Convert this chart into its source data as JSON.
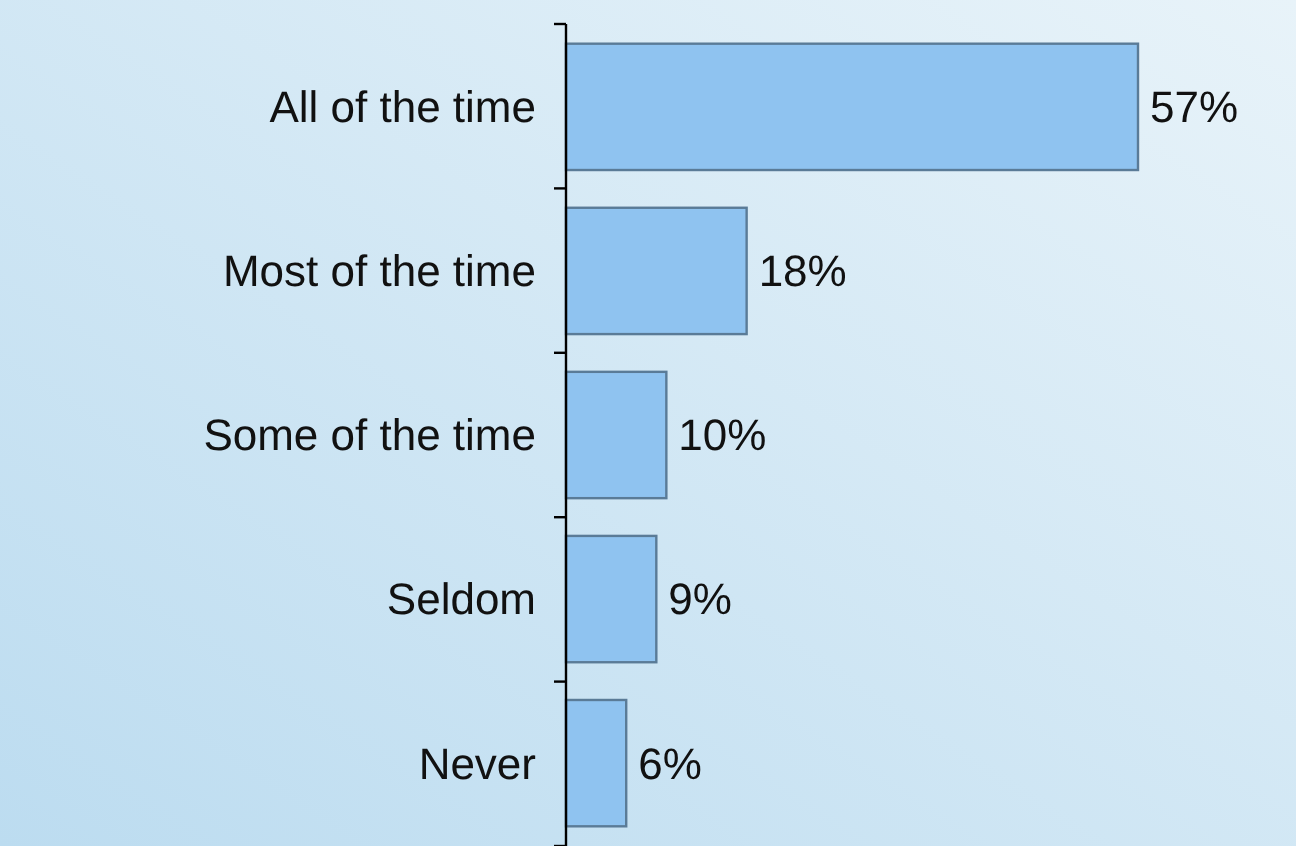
{
  "chart_data": {
    "type": "bar",
    "orientation": "horizontal",
    "data_labels": true,
    "categories": [
      "All of the time",
      "Most of the time",
      "Some of the time",
      "Seldom",
      "Never"
    ],
    "values": [
      57,
      18,
      10,
      9,
      6
    ],
    "value_labels": [
      "57%",
      "18%",
      "10%",
      "9%",
      "6%"
    ],
    "color": "#8fc3f0"
  }
}
